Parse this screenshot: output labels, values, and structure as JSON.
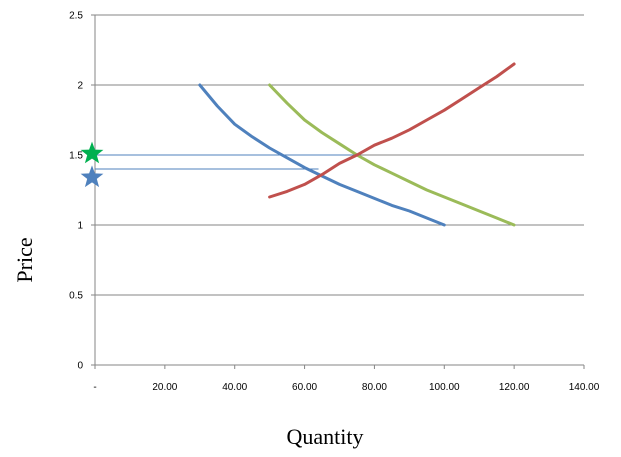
{
  "chart_data": {
    "type": "line",
    "xlabel": "Quantity",
    "ylabel": "Price",
    "xlim": [
      0,
      140
    ],
    "ylim": [
      0,
      2.5
    ],
    "x_ticks": [
      {
        "value": 0,
        "label": "-"
      },
      {
        "value": 20,
        "label": "20.00"
      },
      {
        "value": 40,
        "label": "40.00"
      },
      {
        "value": 60,
        "label": "60.00"
      },
      {
        "value": 80,
        "label": "80.00"
      },
      {
        "value": 100,
        "label": "100.00"
      },
      {
        "value": 120,
        "label": "120.00"
      },
      {
        "value": 140,
        "label": "140.00"
      }
    ],
    "y_ticks": [
      {
        "value": 0,
        "label": "0"
      },
      {
        "value": 0.5,
        "label": "0.5"
      },
      {
        "value": 1,
        "label": "1"
      },
      {
        "value": 1.5,
        "label": "1.5"
      },
      {
        "value": 2,
        "label": "2"
      },
      {
        "value": 2.5,
        "label": "2.5"
      }
    ],
    "grid": "horizontal",
    "series": [
      {
        "color": "#4f81bd",
        "points": [
          [
            30,
            2.0
          ],
          [
            35,
            1.85
          ],
          [
            40,
            1.72
          ],
          [
            45,
            1.63
          ],
          [
            50,
            1.55
          ],
          [
            55,
            1.48
          ],
          [
            60,
            1.41
          ],
          [
            65,
            1.35
          ],
          [
            70,
            1.29
          ],
          [
            75,
            1.24
          ],
          [
            80,
            1.19
          ],
          [
            85,
            1.14
          ],
          [
            90,
            1.1
          ],
          [
            95,
            1.05
          ],
          [
            100,
            1.0
          ]
        ]
      },
      {
        "color": "#9bbb59",
        "points": [
          [
            50,
            2.0
          ],
          [
            55,
            1.87
          ],
          [
            60,
            1.75
          ],
          [
            65,
            1.66
          ],
          [
            70,
            1.58
          ],
          [
            75,
            1.5
          ],
          [
            80,
            1.43
          ],
          [
            85,
            1.37
          ],
          [
            90,
            1.31
          ],
          [
            95,
            1.25
          ],
          [
            100,
            1.2
          ],
          [
            105,
            1.15
          ],
          [
            110,
            1.1
          ],
          [
            115,
            1.05
          ],
          [
            120,
            1.0
          ]
        ]
      },
      {
        "color": "#c0504d",
        "points": [
          [
            50,
            1.2
          ],
          [
            55,
            1.24
          ],
          [
            60,
            1.29
          ],
          [
            65,
            1.36
          ],
          [
            70,
            1.44
          ],
          [
            75,
            1.5
          ],
          [
            80,
            1.57
          ],
          [
            85,
            1.62
          ],
          [
            90,
            1.68
          ],
          [
            95,
            1.75
          ],
          [
            100,
            1.82
          ],
          [
            105,
            1.9
          ],
          [
            110,
            1.98
          ],
          [
            115,
            2.06
          ],
          [
            120,
            2.15
          ]
        ]
      }
    ],
    "reference_lines": [
      {
        "color": "#4f81bd",
        "y": 1.5,
        "x_from": 0,
        "x_to": 75
      },
      {
        "color": "#4f81bd",
        "y": 1.4,
        "x_from": 0,
        "x_to": 64
      }
    ],
    "markers": [
      {
        "shape": "star",
        "color": "#00b050",
        "x": 0,
        "y": 1.51
      },
      {
        "shape": "star",
        "color": "#4f81bd",
        "x": 0,
        "y": 1.34
      }
    ]
  }
}
